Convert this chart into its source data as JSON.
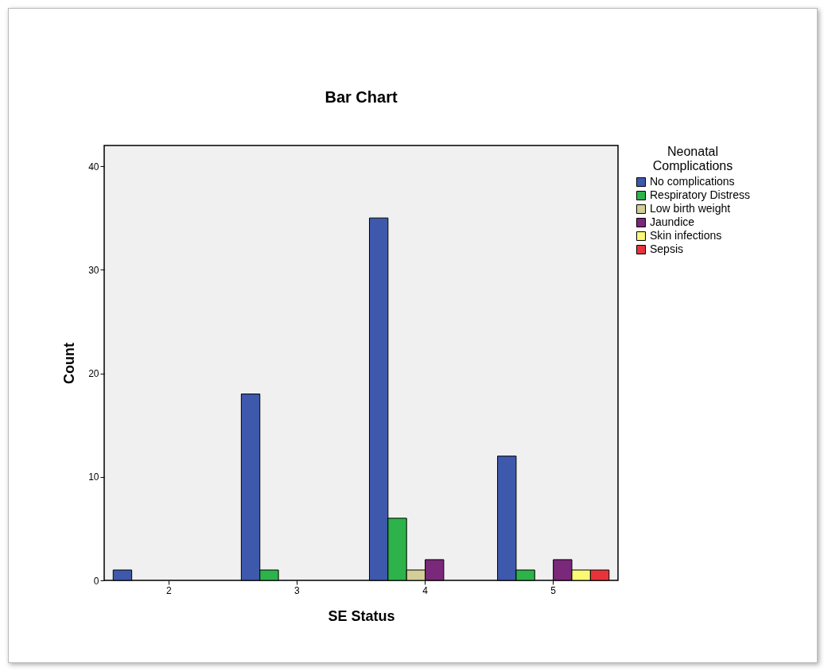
{
  "chart_data": {
    "type": "bar",
    "title": "Bar Chart",
    "xlabel": "SE Status",
    "ylabel": "Count",
    "legend_title": "Neonatal Complications",
    "categories": [
      "2",
      "3",
      "4",
      "5"
    ],
    "series": [
      {
        "name": "No complications",
        "color": "#3e58ac",
        "values": [
          1,
          18,
          35,
          12
        ]
      },
      {
        "name": "Respiratory Distress",
        "color": "#2db34a",
        "values": [
          null,
          1,
          6,
          1
        ]
      },
      {
        "name": "Low birth weight",
        "color": "#d3ce97",
        "values": [
          null,
          null,
          1,
          null
        ]
      },
      {
        "name": "Jaundice",
        "color": "#79287a",
        "values": [
          null,
          null,
          2,
          2
        ]
      },
      {
        "name": "Skin infections",
        "color": "#fbf873",
        "values": [
          null,
          null,
          null,
          1
        ]
      },
      {
        "name": "Sepsis",
        "color": "#e8333a",
        "values": [
          null,
          null,
          null,
          1
        ]
      }
    ],
    "ylim": [
      0,
      42
    ],
    "yticks": [
      0,
      10,
      20,
      30,
      40
    ],
    "grid": false,
    "legend": "top right"
  }
}
